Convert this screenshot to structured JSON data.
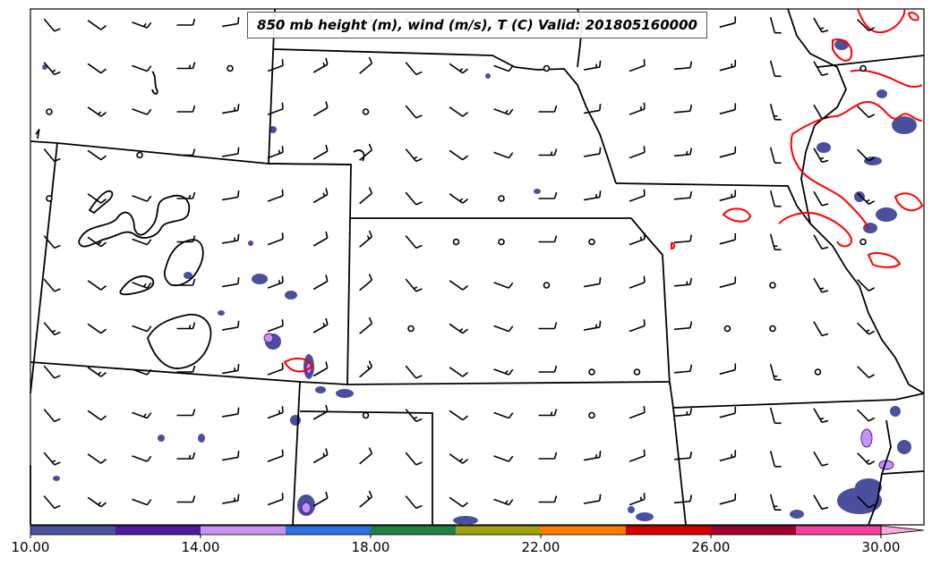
{
  "title": "850 mb height (m), wind (m/s), T (C) Valid: 201805160000",
  "colorbar": {
    "tick_labels": [
      "10.00",
      "14.00",
      "18.00",
      "22.00",
      "26.00",
      "30.00"
    ],
    "min": 10,
    "max": 30,
    "extend": "max",
    "colors": [
      "#4a4f9e",
      "#4e1aa0",
      "#c792f0",
      "#2f6fe0",
      "#1f8040",
      "#a0a010",
      "#ff7a00",
      "#d00000",
      "#a00030",
      "#f040a0",
      "#f7a8d8"
    ]
  },
  "legend_colors": {
    "isotherm": "#ff0000",
    "terrain": "#000000"
  },
  "icons": {
    "wind_barb": "wind-barb-icon",
    "calm": "calm-circle-icon"
  }
}
